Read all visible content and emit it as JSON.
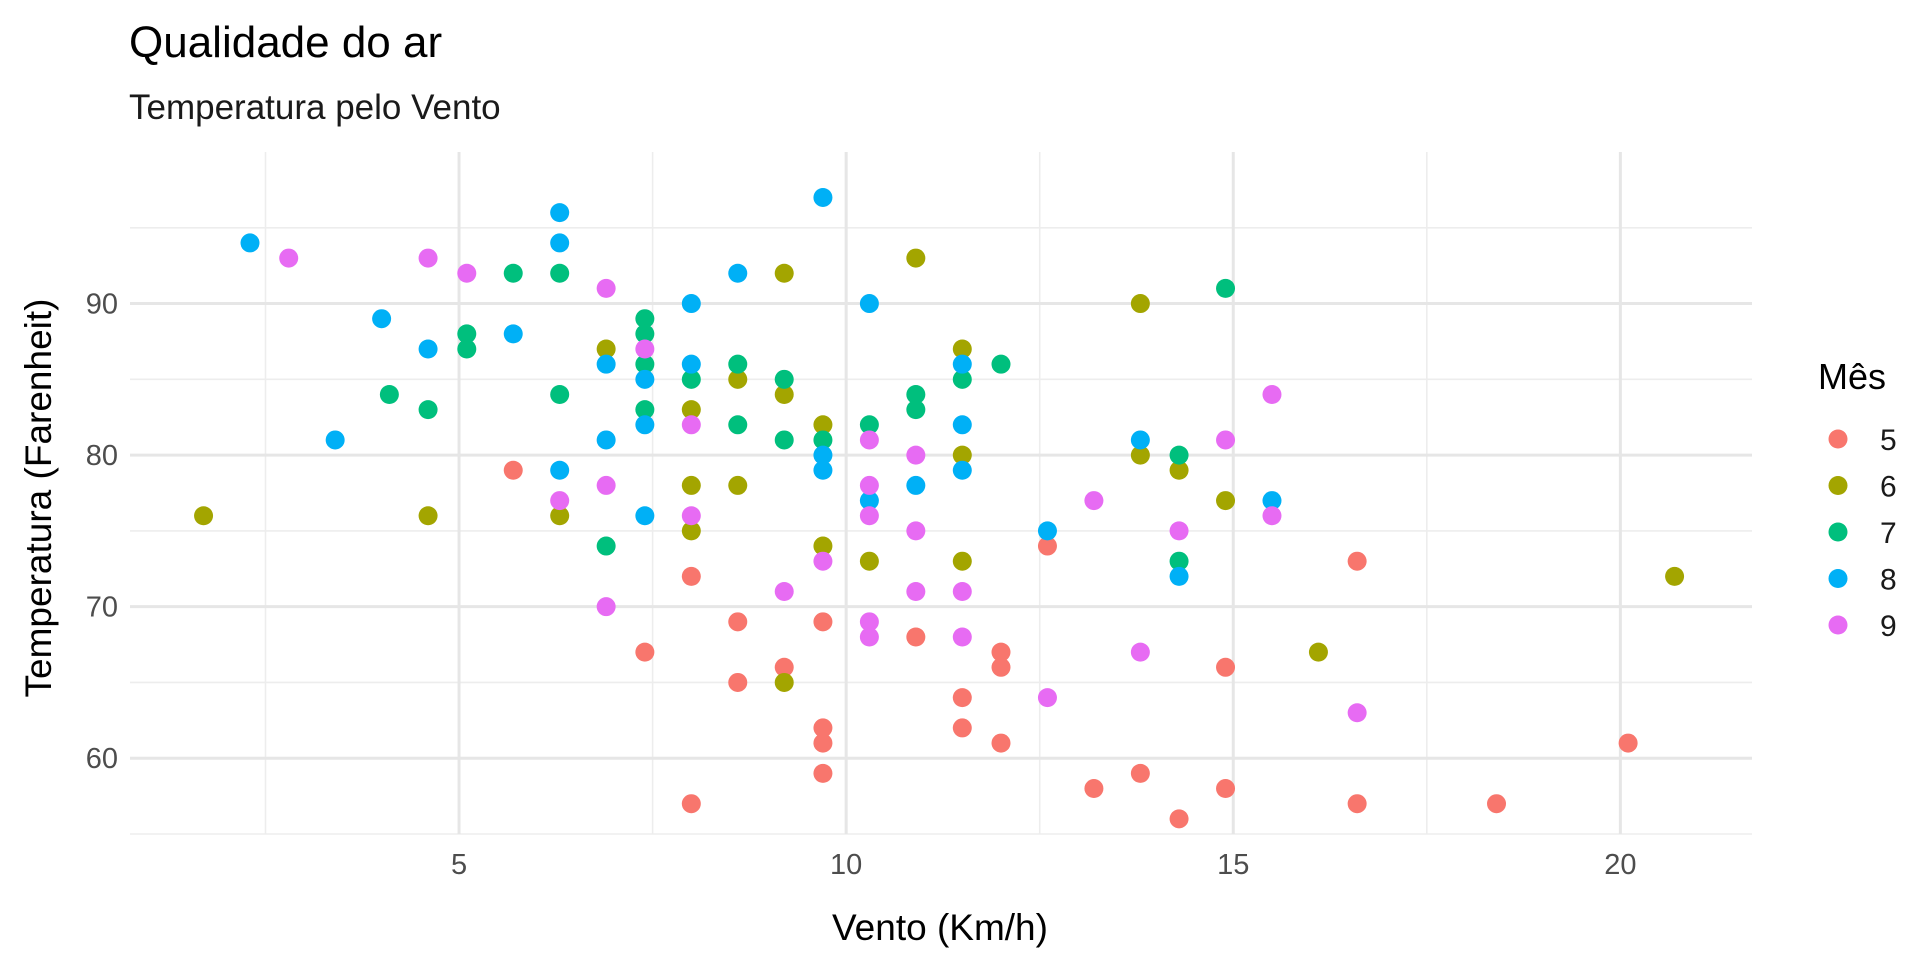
{
  "chart_data": {
    "type": "scatter",
    "title": "Qualidade do ar",
    "subtitle": "Temperatura pelo Vento",
    "xlabel": "Vento (Km/h)",
    "ylabel": "Temperatura (Farenheit)",
    "xlim": [
      0.75,
      21.7
    ],
    "ylim": [
      55,
      100
    ],
    "x_ticks": [
      5,
      10,
      15,
      20
    ],
    "y_ticks": [
      60,
      70,
      80,
      90
    ],
    "grid": true,
    "legend": {
      "title": "Mês",
      "placement": "right"
    },
    "series": [
      {
        "name": "5",
        "color": "#F8766D",
        "points": [
          [
            5.7,
            79
          ],
          [
            7.4,
            67
          ],
          [
            8.0,
            72
          ],
          [
            8.0,
            57
          ],
          [
            8.6,
            69
          ],
          [
            8.6,
            65
          ],
          [
            9.2,
            66
          ],
          [
            9.7,
            69
          ],
          [
            9.7,
            62
          ],
          [
            9.7,
            61
          ],
          [
            9.7,
            59
          ],
          [
            10.9,
            68
          ],
          [
            11.5,
            64
          ],
          [
            11.5,
            62
          ],
          [
            12.0,
            67
          ],
          [
            12.0,
            66
          ],
          [
            12.0,
            61
          ],
          [
            12.6,
            74
          ],
          [
            13.2,
            58
          ],
          [
            13.8,
            59
          ],
          [
            14.3,
            56
          ],
          [
            14.9,
            66
          ],
          [
            14.9,
            58
          ],
          [
            16.6,
            73
          ],
          [
            16.6,
            57
          ],
          [
            18.4,
            57
          ],
          [
            20.1,
            61
          ]
        ]
      },
      {
        "name": "6",
        "color": "#A3A500",
        "points": [
          [
            1.7,
            76
          ],
          [
            4.6,
            76
          ],
          [
            6.3,
            76
          ],
          [
            6.9,
            87
          ],
          [
            8.0,
            83
          ],
          [
            8.0,
            78
          ],
          [
            8.0,
            75
          ],
          [
            8.6,
            85
          ],
          [
            8.6,
            78
          ],
          [
            9.2,
            92
          ],
          [
            9.2,
            84
          ],
          [
            9.2,
            65
          ],
          [
            9.7,
            82
          ],
          [
            9.7,
            74
          ],
          [
            10.3,
            73
          ],
          [
            10.9,
            93
          ],
          [
            11.5,
            87
          ],
          [
            11.5,
            80
          ],
          [
            11.5,
            73
          ],
          [
            13.8,
            90
          ],
          [
            13.8,
            80
          ],
          [
            14.3,
            79
          ],
          [
            14.9,
            77
          ],
          [
            16.1,
            67
          ],
          [
            20.7,
            72
          ]
        ]
      },
      {
        "name": "7",
        "color": "#00BF7D",
        "points": [
          [
            4.1,
            84
          ],
          [
            4.6,
            83
          ],
          [
            5.1,
            88
          ],
          [
            5.1,
            87
          ],
          [
            5.7,
            92
          ],
          [
            6.3,
            92
          ],
          [
            6.3,
            84
          ],
          [
            6.9,
            74
          ],
          [
            7.4,
            89
          ],
          [
            7.4,
            88
          ],
          [
            7.4,
            86
          ],
          [
            7.4,
            83
          ],
          [
            8.0,
            85
          ],
          [
            8.6,
            86
          ],
          [
            8.6,
            82
          ],
          [
            9.2,
            85
          ],
          [
            9.2,
            81
          ],
          [
            9.7,
            81
          ],
          [
            10.3,
            82
          ],
          [
            10.9,
            84
          ],
          [
            10.9,
            83
          ],
          [
            11.5,
            85
          ],
          [
            12.0,
            86
          ],
          [
            14.3,
            80
          ],
          [
            14.3,
            73
          ],
          [
            14.9,
            91
          ]
        ]
      },
      {
        "name": "8",
        "color": "#00B0F6",
        "points": [
          [
            2.3,
            94
          ],
          [
            3.4,
            81
          ],
          [
            4.0,
            89
          ],
          [
            4.6,
            87
          ],
          [
            5.7,
            88
          ],
          [
            6.3,
            96
          ],
          [
            6.3,
            94
          ],
          [
            6.3,
            79
          ],
          [
            6.9,
            86
          ],
          [
            6.9,
            81
          ],
          [
            7.4,
            85
          ],
          [
            7.4,
            82
          ],
          [
            7.4,
            76
          ],
          [
            8.0,
            90
          ],
          [
            8.0,
            86
          ],
          [
            8.6,
            92
          ],
          [
            9.7,
            97
          ],
          [
            9.7,
            80
          ],
          [
            9.7,
            79
          ],
          [
            10.3,
            90
          ],
          [
            10.3,
            77
          ],
          [
            10.9,
            78
          ],
          [
            11.5,
            86
          ],
          [
            11.5,
            82
          ],
          [
            11.5,
            79
          ],
          [
            12.6,
            75
          ],
          [
            13.8,
            81
          ],
          [
            14.3,
            72
          ],
          [
            15.5,
            77
          ]
        ]
      },
      {
        "name": "9",
        "color": "#E76BF3",
        "points": [
          [
            2.8,
            93
          ],
          [
            4.6,
            93
          ],
          [
            5.1,
            92
          ],
          [
            6.3,
            77
          ],
          [
            6.9,
            91
          ],
          [
            6.9,
            78
          ],
          [
            6.9,
            70
          ],
          [
            7.4,
            87
          ],
          [
            8.0,
            82
          ],
          [
            8.0,
            76
          ],
          [
            9.2,
            71
          ],
          [
            9.7,
            73
          ],
          [
            10.3,
            81
          ],
          [
            10.3,
            78
          ],
          [
            10.3,
            76
          ],
          [
            10.3,
            69
          ],
          [
            10.3,
            68
          ],
          [
            10.9,
            80
          ],
          [
            10.9,
            75
          ],
          [
            10.9,
            71
          ],
          [
            11.5,
            71
          ],
          [
            11.5,
            68
          ],
          [
            12.6,
            64
          ],
          [
            13.2,
            77
          ],
          [
            13.8,
            67
          ],
          [
            14.3,
            75
          ],
          [
            14.9,
            81
          ],
          [
            15.5,
            84
          ],
          [
            15.5,
            76
          ],
          [
            16.6,
            63
          ]
        ]
      }
    ]
  }
}
